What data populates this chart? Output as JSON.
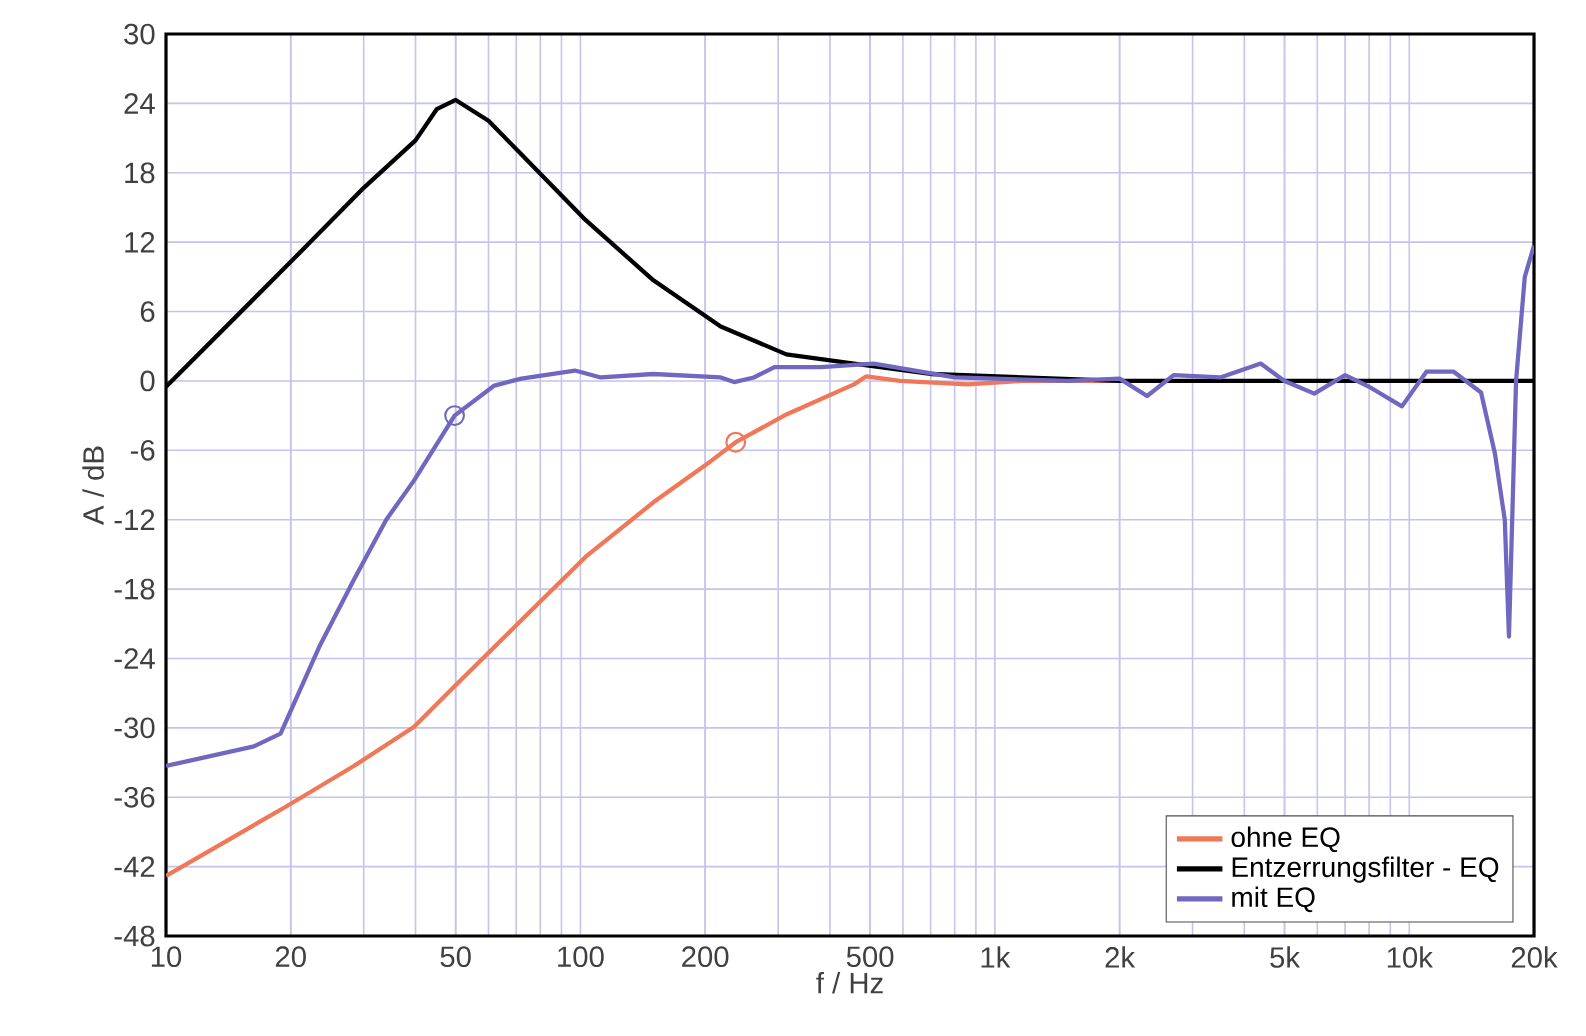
{
  "chart_data": {
    "type": "line",
    "xlabel": "f / Hz",
    "ylabel": "A / dB",
    "log": "x",
    "grid": true,
    "legend": "bottom right",
    "xlim": [
      10,
      20000
    ],
    "ylim": [
      -48,
      30
    ],
    "xticks": [
      10,
      20,
      50,
      100,
      200,
      500,
      {
        "value": 1000,
        "label": "1k"
      },
      {
        "value": 2000,
        "label": "2k"
      },
      {
        "value": 5000,
        "label": "5k"
      },
      {
        "value": 10000,
        "label": "10k"
      },
      {
        "value": 20000,
        "label": "20k"
      }
    ],
    "yticks": [
      -48,
      -42,
      -36,
      -30,
      -24,
      -18,
      -12,
      -6,
      0,
      6,
      12,
      18,
      24,
      30
    ],
    "series": [
      {
        "name": "ohne EQ",
        "color": "#f07858",
        "x": [
          10,
          19.5,
          28.4,
          39.7,
          49.7,
          72,
          103,
          150,
          200,
          237,
          314,
          457,
          490,
          590,
          860,
          1160,
          2000
        ],
        "values": [
          -42.8,
          -36.8,
          -33.3,
          -29.9,
          -26.4,
          -20.7,
          -15.2,
          -10.5,
          -7.3,
          -5.3,
          -2.9,
          -0.3,
          0.4,
          0,
          -0.3,
          0,
          0
        ]
      },
      {
        "name": "Entzerrungsfilter - EQ",
        "color": "#000000",
        "x": [
          10,
          20,
          30,
          40,
          45,
          50,
          60,
          72,
          103,
          150,
          218,
          314,
          457,
          700,
          2000,
          20000
        ],
        "values": [
          -0.5,
          10.3,
          16.7,
          20.8,
          23.5,
          24.3,
          22.5,
          19.6,
          13.9,
          8.7,
          4.7,
          2.3,
          1.5,
          0.6,
          0,
          0
        ]
      },
      {
        "name": "mit EQ",
        "color": "#7068c0",
        "x": [
          10,
          16.3,
          18.9,
          23.5,
          28.4,
          34,
          39.7,
          49.7,
          62,
          72,
          97,
          112,
          150,
          218,
          235,
          262,
          294,
          380,
          510,
          800,
          1500,
          2000,
          2330,
          2700,
          3500,
          4380,
          5000,
          5900,
          7000,
          8000,
          9600,
          11000,
          12800,
          14900,
          16100,
          17000,
          17400,
          18100,
          19000,
          20000
        ],
        "values": [
          -33.3,
          -31.6,
          -30.5,
          -22.9,
          -17.2,
          -12,
          -8.6,
          -3,
          -0.4,
          0.2,
          0.9,
          0.3,
          0.6,
          0.3,
          -0.1,
          0.3,
          1.2,
          1.2,
          1.5,
          0.3,
          0,
          0.2,
          -1.3,
          0.5,
          0.3,
          1.5,
          0,
          -1.1,
          0.5,
          -0.5,
          -2.2,
          0.8,
          0.8,
          -1,
          -6.3,
          -12,
          -22.1,
          0,
          9,
          11.7
        ]
      },
      {
        "type": "scatter",
        "marker": "circle",
        "color": "#7068c0",
        "x": [
          49.7
        ],
        "values": [
          -3
        ]
      },
      {
        "type": "scatter",
        "marker": "circle",
        "color": "#f07858",
        "x": [
          237
        ],
        "values": [
          -5.3
        ]
      }
    ]
  }
}
